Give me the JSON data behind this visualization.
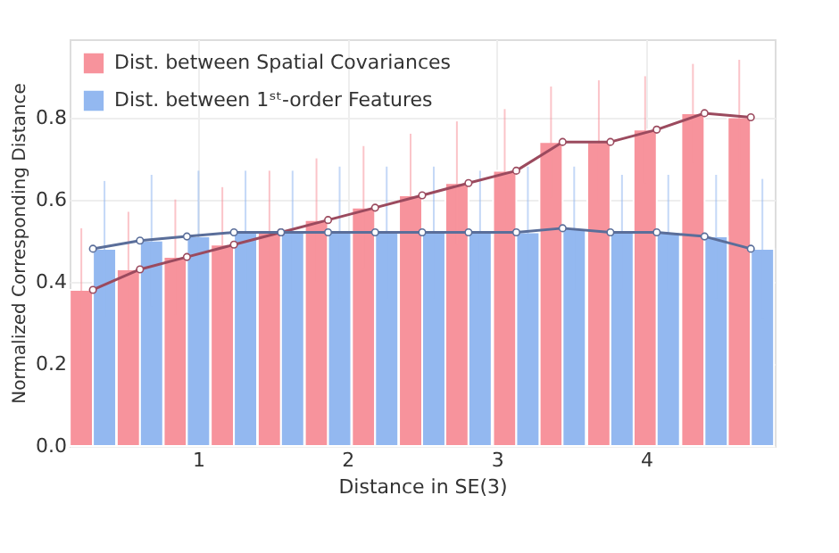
{
  "chart_data": {
    "type": "bar",
    "xlabel": "Distance in SE(3)",
    "ylabel": "Normalized Corresponding Distance",
    "x": [
      0.296,
      0.611,
      0.925,
      1.24,
      1.555,
      1.87,
      2.185,
      2.5,
      2.81,
      3.13,
      3.44,
      3.76,
      4.07,
      4.39,
      4.7
    ],
    "series": [
      {
        "name": "Dist. between Spatial Covariances",
        "color": "#f7939c",
        "values": [
          0.38,
          0.43,
          0.46,
          0.49,
          0.52,
          0.55,
          0.58,
          0.61,
          0.64,
          0.67,
          0.74,
          0.74,
          0.77,
          0.81,
          0.8
        ],
        "errors": [
          0.15,
          0.14,
          0.14,
          0.14,
          0.15,
          0.15,
          0.15,
          0.15,
          0.15,
          0.15,
          0.135,
          0.15,
          0.13,
          0.12,
          0.14
        ]
      },
      {
        "name": "Dist. between 1ˢᵗ-order Features",
        "color": "#93b8f0",
        "values": [
          0.48,
          0.5,
          0.51,
          0.52,
          0.52,
          0.52,
          0.52,
          0.52,
          0.52,
          0.52,
          0.53,
          0.52,
          0.52,
          0.51,
          0.48
        ],
        "errors": [
          0.165,
          0.16,
          0.16,
          0.15,
          0.15,
          0.16,
          0.16,
          0.16,
          0.15,
          0.16,
          0.15,
          0.14,
          0.14,
          0.15,
          0.17
        ]
      },
      {
        "type": "line",
        "color": "#9b4a5e",
        "values": [
          0.38,
          0.43,
          0.46,
          0.49,
          0.52,
          0.55,
          0.58,
          0.61,
          0.64,
          0.67,
          0.74,
          0.74,
          0.77,
          0.81,
          0.8
        ]
      },
      {
        "type": "line",
        "color": "#5a6e9a",
        "values": [
          0.48,
          0.5,
          0.51,
          0.52,
          0.52,
          0.52,
          0.52,
          0.52,
          0.52,
          0.52,
          0.53,
          0.52,
          0.52,
          0.51,
          0.48
        ]
      }
    ],
    "xlim": [
      0.14,
      4.86
    ],
    "xticks": [
      1,
      2,
      3,
      4
    ],
    "ylim": [
      0,
      0.99
    ],
    "yticks": [
      {
        "value": 0,
        "label": "0.0"
      },
      0.2,
      0.4,
      0.6,
      0.8
    ],
    "grid": true,
    "legend": "top left",
    "marker": "circle"
  }
}
